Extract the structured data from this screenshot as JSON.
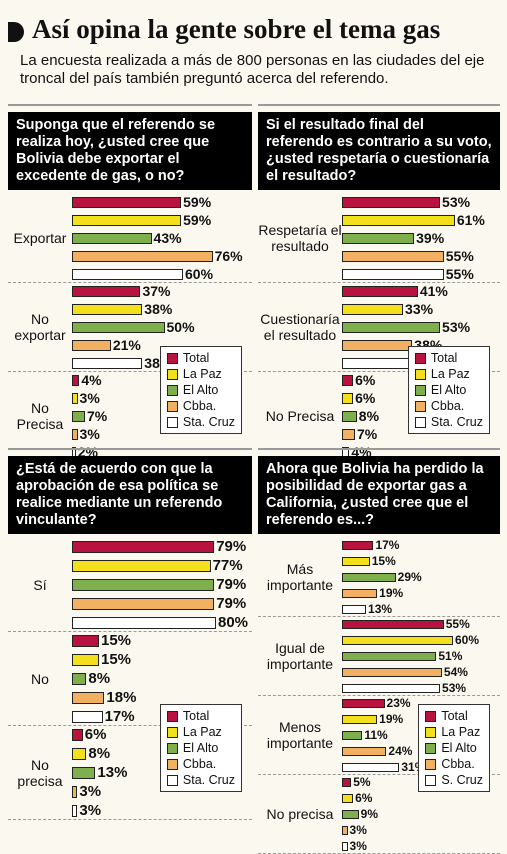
{
  "header": {
    "title": "Así opina la gente sobre el tema gas",
    "subtitle": "La encuesta realizada a más de 800 personas en las ciudades del eje troncal del país también preguntó acerca del referendo."
  },
  "chart_data": [
    {
      "type": "bar",
      "orientation": "horizontal",
      "title": "Suponga que el referendo se realiza hoy, ¿usted cree que Bolivia debe exportar el excedente de gas, o no?",
      "categories": [
        "Exportar",
        "No exportar",
        "No Precisa"
      ],
      "series": [
        {
          "name": "Total",
          "color": "#b8123e",
          "values": [
            59,
            37,
            4
          ],
          "value_labels": [
            "59%",
            "37%",
            "4%"
          ]
        },
        {
          "name": "La Paz",
          "color": "#f4df1c",
          "values": [
            59,
            38,
            3
          ],
          "value_labels": [
            "59%",
            "38%",
            "3%"
          ]
        },
        {
          "name": "El Alto",
          "color": "#7fae4c",
          "values": [
            43,
            50,
            7
          ],
          "value_labels": [
            "43%",
            "50%",
            "7%"
          ]
        },
        {
          "name": "Cbba.",
          "color": "#f1b062",
          "values": [
            76,
            21,
            3
          ],
          "value_labels": [
            "76%",
            "21%",
            "3%"
          ]
        },
        {
          "name": "Sta. Cruz",
          "color": "#ffffff",
          "values": [
            60,
            38,
            2
          ],
          "value_labels": [
            "60%",
            "38%",
            "2%"
          ]
        }
      ]
    },
    {
      "type": "bar",
      "orientation": "horizontal",
      "title": "Si el resultado final del referendo es contrario a su voto, ¿usted respetaría o cuestionaría el resultado?",
      "categories": [
        "Respetaría el resultado",
        "Cuestionaría el resultado",
        "No Precisa"
      ],
      "series": [
        {
          "name": "Total",
          "color": "#b8123e",
          "values": [
            53,
            41,
            6
          ],
          "value_labels": [
            "53%",
            "41%",
            "6%"
          ]
        },
        {
          "name": "La Paz",
          "color": "#f4df1c",
          "values": [
            61,
            33,
            6
          ],
          "value_labels": [
            "61%",
            "33%",
            "6%"
          ]
        },
        {
          "name": "El Alto",
          "color": "#7fae4c",
          "values": [
            39,
            53,
            8
          ],
          "value_labels": [
            "39%",
            "53%",
            "8%"
          ]
        },
        {
          "name": "Cbba.",
          "color": "#f1b062",
          "values": [
            55,
            38,
            7
          ],
          "value_labels": [
            "55%",
            "38%",
            "7%"
          ]
        },
        {
          "name": "Sta. Cruz",
          "color": "#ffffff",
          "values": [
            55,
            41,
            4
          ],
          "value_labels": [
            "55%",
            "41%",
            "4%"
          ]
        }
      ]
    },
    {
      "type": "bar",
      "orientation": "horizontal",
      "title": "¿Está de acuerdo con que la aprobación de esa política se realice mediante un referendo vinculante?",
      "categories": [
        "Sí",
        "No",
        "No precisa"
      ],
      "series": [
        {
          "name": "Total",
          "color": "#b8123e",
          "values": [
            79,
            15,
            6
          ],
          "value_labels": [
            "79%",
            "15%",
            "6%"
          ]
        },
        {
          "name": "La Paz",
          "color": "#f4df1c",
          "values": [
            77,
            15,
            8
          ],
          "value_labels": [
            "77%",
            "15%",
            "8%"
          ]
        },
        {
          "name": "El Alto",
          "color": "#7fae4c",
          "values": [
            79,
            8,
            13
          ],
          "value_labels": [
            "79%",
            "8%",
            "13%"
          ]
        },
        {
          "name": "Cbba.",
          "color": "#f1b062",
          "values": [
            79,
            18,
            3
          ],
          "value_labels": [
            "79%",
            "18%",
            "3%"
          ]
        },
        {
          "name": "Sta. Cruz",
          "color": "#ffffff",
          "values": [
            80,
            17,
            3
          ],
          "value_labels": [
            "80%",
            "17%",
            "3%"
          ]
        }
      ]
    },
    {
      "type": "bar",
      "orientation": "horizontal",
      "title": "Ahora que Bolivia ha perdido la posibilidad de exportar gas a California, ¿usted cree que el referendo es...?",
      "categories": [
        "Más importante",
        "Igual de importante",
        "Menos importante",
        "No precisa"
      ],
      "series": [
        {
          "name": "Total",
          "color": "#b8123e",
          "values": [
            17,
            55,
            23,
            5
          ],
          "value_labels": [
            "17%",
            "55%",
            "23%",
            "5%"
          ]
        },
        {
          "name": "La Paz",
          "color": "#f4df1c",
          "values": [
            15,
            60,
            19,
            6
          ],
          "value_labels": [
            "15%",
            "60%",
            "19%",
            "6%"
          ]
        },
        {
          "name": "El Alto",
          "color": "#7fae4c",
          "values": [
            29,
            51,
            11,
            9
          ],
          "value_labels": [
            "29%",
            "51%",
            "11%",
            "9%"
          ]
        },
        {
          "name": "Cbba.",
          "color": "#f1b062",
          "values": [
            19,
            54,
            24,
            3
          ],
          "value_labels": [
            "19%",
            "54%",
            "24%",
            "3%"
          ]
        },
        {
          "name": "S. Cruz",
          "color": "#ffffff",
          "values": [
            13,
            53,
            31,
            3
          ],
          "value_labels": [
            "13%",
            "53%",
            "31%",
            "3%"
          ]
        }
      ]
    }
  ]
}
